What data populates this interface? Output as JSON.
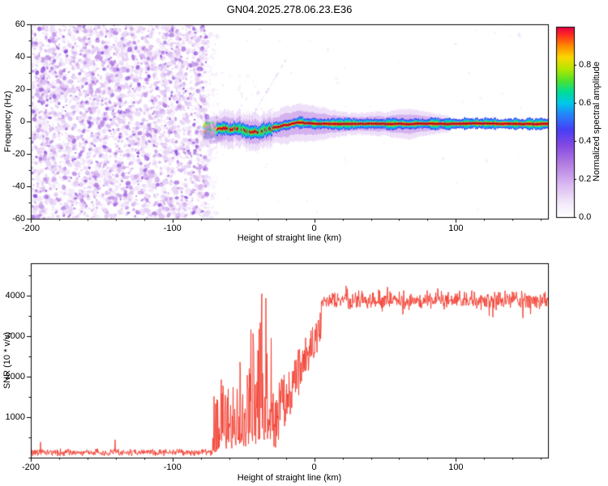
{
  "chart_data": [
    {
      "type": "heatmap",
      "title": "GN04.2025.278.06.23.E36",
      "xlabel": "Height of straight line (km)",
      "ylabel": "Frequency (Hz)",
      "xlim": [
        -200,
        165
      ],
      "ylim": [
        -60,
        60
      ],
      "xticks": [
        -200,
        -100,
        0,
        100
      ],
      "xtick_minor_step": 20,
      "yticks": [
        -60,
        -40,
        -20,
        0,
        20,
        40,
        60
      ],
      "ytick_minor_step": 10,
      "grid": false,
      "colorbar": {
        "label": "Normalized spectral amplitude",
        "range": [
          0,
          1
        ],
        "ticks": [
          "0.0",
          "0.2",
          "0.4",
          "0.6",
          "0.8"
        ],
        "tick_values": [
          0,
          0.2,
          0.4,
          0.6,
          0.8
        ],
        "colormap_stops": [
          [
            0,
            255,
            255,
            255
          ],
          [
            0.07,
            244,
            235,
            251
          ],
          [
            0.16,
            222,
            192,
            243
          ],
          [
            0.28,
            180,
            126,
            226
          ],
          [
            0.38,
            132,
            72,
            226
          ],
          [
            0.46,
            72,
            62,
            246
          ],
          [
            0.54,
            36,
            132,
            250
          ],
          [
            0.6,
            0,
            200,
            235
          ],
          [
            0.66,
            0,
            221,
            150
          ],
          [
            0.72,
            82,
            226,
            42
          ],
          [
            0.78,
            180,
            231,
            0
          ],
          [
            0.84,
            250,
            216,
            0
          ],
          [
            0.9,
            255,
            140,
            0
          ],
          [
            0.96,
            255,
            42,
            32
          ],
          [
            1,
            228,
            0,
            70
          ]
        ]
      },
      "features": {
        "noise_field": {
          "x_range_km": [
            -200,
            -75
          ],
          "amplitude_range": [
            0,
            0.35
          ],
          "description": "dense speckled purple receiver-noise field filling all frequencies"
        },
        "echo_trace": {
          "x_range_km": [
            -75,
            165
          ],
          "center_frequency_hz": {
            "start": -5,
            "settled": -1.5
          },
          "core_amplitude": 1,
          "description": "narrow high-amplitude echo near 0 Hz; wanders between -7 and 0 Hz from -75 to -30 km, then runs straight at about -1.5 Hz with red core, green/cyan/blue fringes and pale purple fuzz"
        }
      }
    },
    {
      "type": "line",
      "xlabel": "Height of straight line (km)",
      "ylabel": "SNR (10 * v/v)",
      "xlim": [
        -200,
        165
      ],
      "ylim": [
        0,
        4800
      ],
      "xticks": [
        -200,
        -100,
        0,
        100
      ],
      "xtick_minor_step": 20,
      "yticks": [
        1000,
        2000,
        3000,
        4000
      ],
      "ytick_minor_step": 500,
      "series": [
        {
          "name": "SNR",
          "color": "#f23b2e",
          "segments": [
            {
              "x_range": [
                -200,
                -72
              ],
              "level_mean": 150,
              "level_range": [
                50,
                320
              ],
              "description": "flat noise floor"
            },
            {
              "x_range": [
                -72,
                -30
              ],
              "level_range": [
                150,
                3300
              ],
              "description": "intermittent spikes; lower envelope 150-600, peaks up to ~3300"
            },
            {
              "x_range": [
                -30,
                5
              ],
              "level_range": [
                500,
                4100
              ],
              "description": "steep noisy rise"
            },
            {
              "x_range": [
                5,
                165
              ],
              "level_mean": 3900,
              "level_range": [
                3300,
                4700
              ],
              "description": "noisy plateau"
            }
          ]
        }
      ]
    }
  ]
}
